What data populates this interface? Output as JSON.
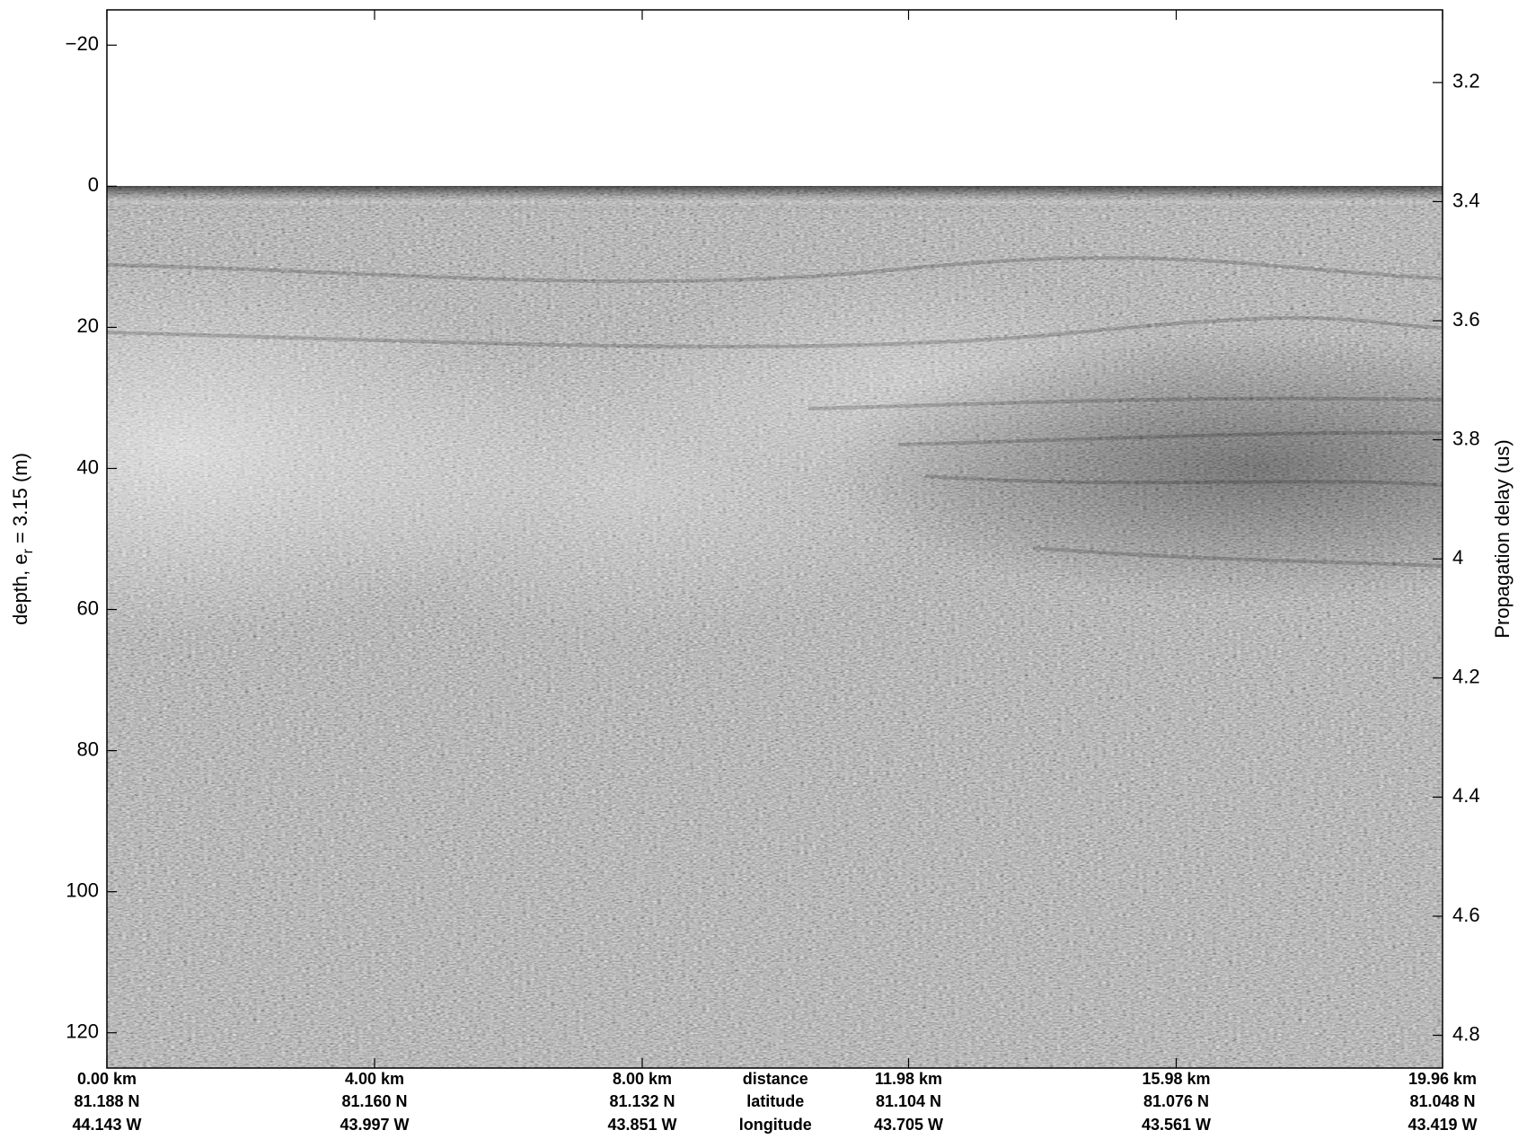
{
  "chart_data": {
    "type": "echogram",
    "ylabel": {
      "text": "depth, e",
      "subscript": "r",
      "suffix": " = 3.15 (m)"
    },
    "y2label": "Propagation delay (us)",
    "xlim": [
      0,
      19.96
    ],
    "xticks": [
      {
        "value": 0,
        "label": "0.00 km"
      },
      {
        "value": 4,
        "label": "4.00 km"
      },
      {
        "value": 8,
        "label": "8.00 km"
      },
      {
        "value": 11.98,
        "label": "11.98 km"
      },
      {
        "value": 15.98,
        "label": "15.98 km"
      },
      {
        "value": 19.96,
        "label": "19.96 km"
      }
    ],
    "latitude_labels": [
      "81.188 N",
      "81.160 N",
      "81.132 N",
      "81.104 N",
      "81.076 N",
      "81.048 N"
    ],
    "longitude_labels": [
      "44.143 W",
      "43.997 W",
      "43.851 W",
      "43.705 W",
      "43.561 W",
      "43.419 W"
    ],
    "x_row_labels": [
      "distance",
      "latitude",
      "longitude"
    ],
    "ylim": [
      -25,
      125
    ],
    "invert_y": true,
    "yticks": [
      {
        "value": -20,
        "label": "−20"
      },
      0,
      20,
      40,
      60,
      80,
      100,
      120
    ],
    "y2lim": [
      3.078,
      4.855
    ],
    "invert_y2": true,
    "y2ticks": [
      3.2,
      3.4,
      3.6,
      3.8,
      4,
      4.2,
      4.4,
      4.6,
      4.8
    ]
  }
}
